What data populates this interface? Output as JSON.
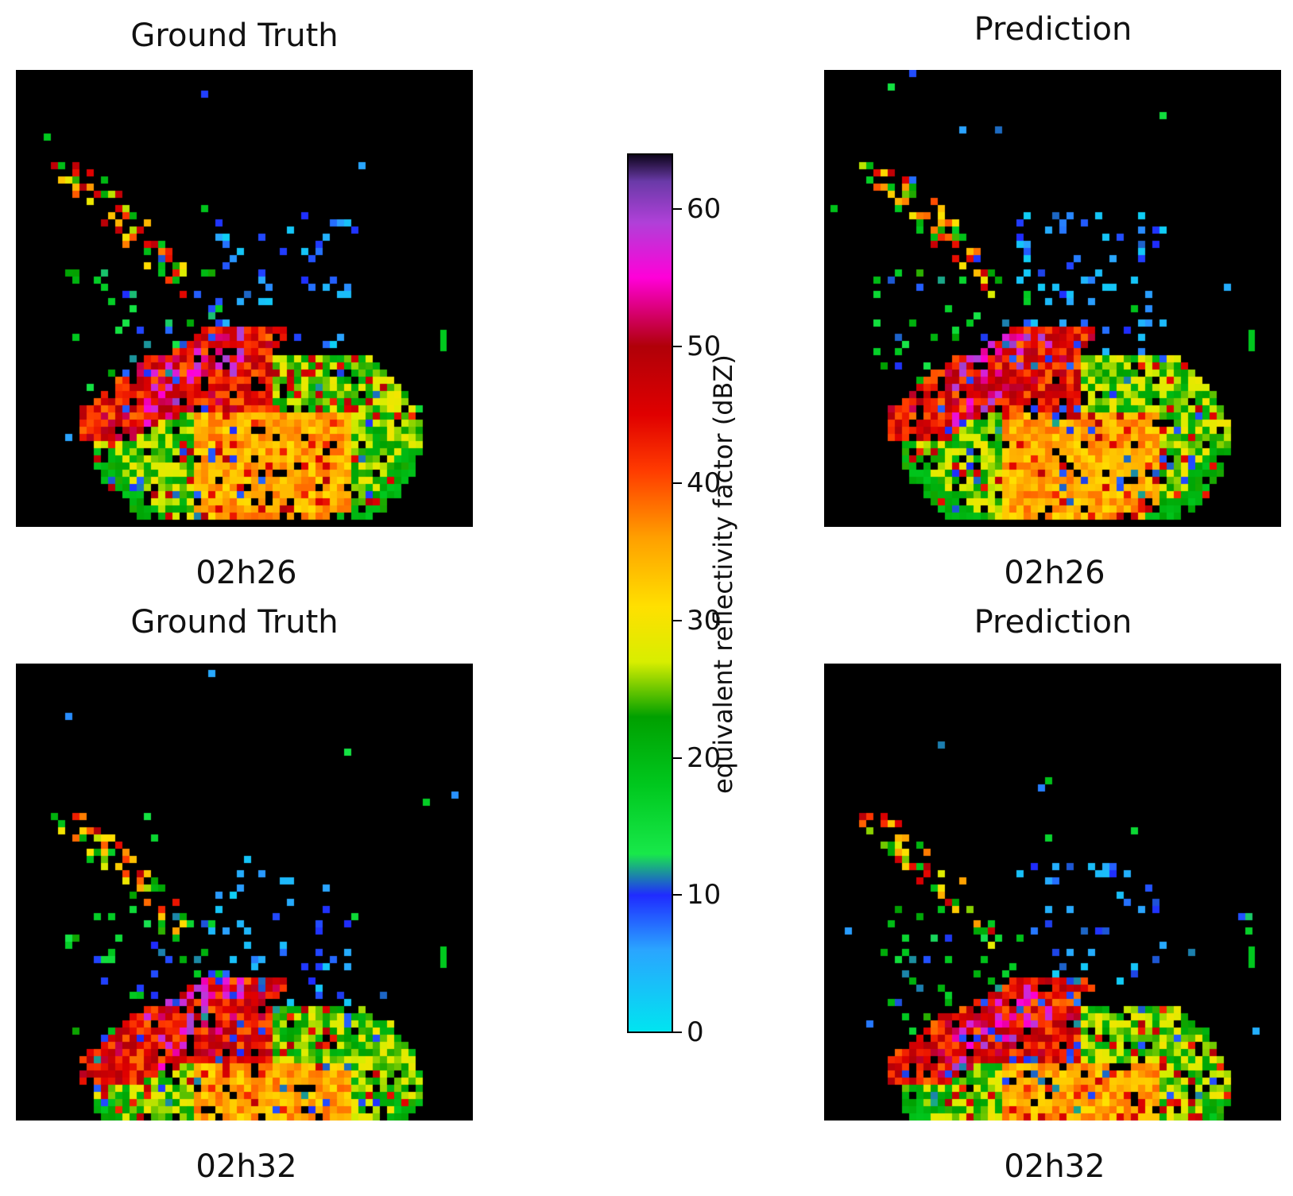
{
  "panels": [
    {
      "title": "Ground Truth",
      "time": "02h26",
      "variant": 0
    },
    {
      "title": "Prediction",
      "time": "02h26",
      "variant": 1
    },
    {
      "title": "Ground Truth",
      "time": "02h32",
      "variant": 2
    },
    {
      "title": "Prediction",
      "time": "02h32",
      "variant": 3
    }
  ],
  "colorbar": {
    "label": "equivalent reflectivity factor (dBZ)",
    "min": 0,
    "max": 64,
    "ticks": [
      0,
      10,
      20,
      30,
      40,
      50,
      60
    ],
    "tick_labels": [
      "0",
      "10",
      "20",
      "30",
      "40",
      "50",
      "60"
    ],
    "stops": [
      {
        "v": 0,
        "c": "#00e5f0"
      },
      {
        "v": 6,
        "c": "#2aa5ff"
      },
      {
        "v": 10,
        "c": "#1f2bff"
      },
      {
        "v": 13,
        "c": "#18e84a"
      },
      {
        "v": 18,
        "c": "#00c81e"
      },
      {
        "v": 23,
        "c": "#00a000"
      },
      {
        "v": 27,
        "c": "#d8ee00"
      },
      {
        "v": 31,
        "c": "#ffe000"
      },
      {
        "v": 36,
        "c": "#ffa000"
      },
      {
        "v": 41,
        "c": "#ff3a00"
      },
      {
        "v": 45,
        "c": "#e00000"
      },
      {
        "v": 50,
        "c": "#b00008"
      },
      {
        "v": 55,
        "c": "#ff00d8"
      },
      {
        "v": 59,
        "c": "#b040d8"
      },
      {
        "v": 62,
        "c": "#6a3aa8"
      },
      {
        "v": 64,
        "c": "#0c0418"
      }
    ]
  },
  "chart_data": {
    "type": "heatmap",
    "subplots": [
      {
        "title": "Ground Truth",
        "xlabel": "02h26"
      },
      {
        "title": "Prediction",
        "xlabel": "02h26"
      },
      {
        "title": "Ground Truth",
        "xlabel": "02h32"
      },
      {
        "title": "Prediction",
        "xlabel": "02h32"
      }
    ],
    "colorbar_label": "equivalent reflectivity factor (dBZ)",
    "colorbar_range": [
      0,
      64
    ],
    "colorbar_ticks": [
      0,
      10,
      20,
      30,
      40,
      50,
      60
    ],
    "background": "#000000"
  }
}
